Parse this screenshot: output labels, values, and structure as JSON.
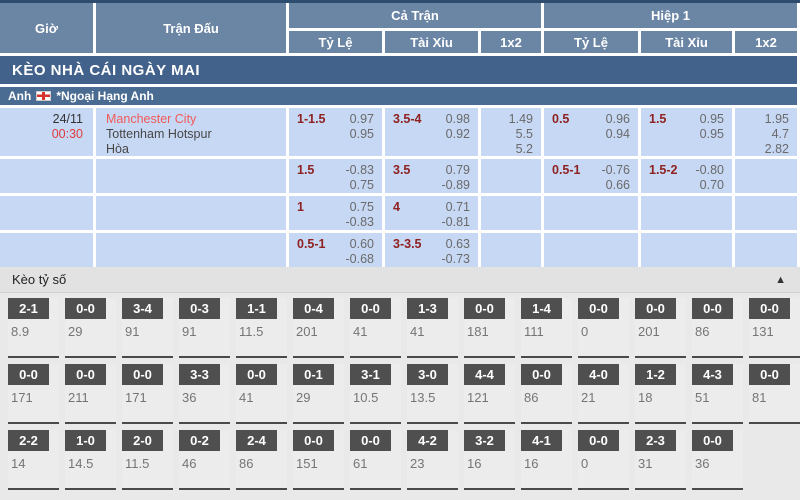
{
  "header": {
    "time_col": "Giờ",
    "match_col": "Trận Đấu",
    "group_full": "Cả Trận",
    "group_half": "Hiệp 1",
    "sub_handicap": "Tỷ Lệ",
    "sub_overunder": "Tài Xỉu",
    "sub_1x2": "1x2"
  },
  "section_title": "KÈO NHÀ CÁI NGÀY MAI",
  "league_bar": {
    "country": "Anh",
    "flag_icon": "england-flag",
    "league": "*Ngoại Hạng Anh"
  },
  "match": {
    "date": "24/11",
    "time": "00:30",
    "home": "Manchester City",
    "away": "Tottenham Hotspur",
    "draw_label": "Hòa"
  },
  "odds_rows": [
    {
      "ft_hdp": {
        "line": "1-1.5",
        "odds": [
          "0.97",
          "0.95"
        ]
      },
      "ft_ou": {
        "line": "3.5-4",
        "odds": [
          "0.98",
          "0.92"
        ]
      },
      "ft_1x2": [
        "1.49",
        "5.5",
        "5.2"
      ],
      "h1_hdp": {
        "line": "0.5",
        "odds": [
          "0.96",
          "0.94"
        ]
      },
      "h1_ou": {
        "line": "1.5",
        "odds": [
          "0.95",
          "0.95"
        ]
      },
      "h1_1x2": [
        "1.95",
        "4.7",
        "2.82"
      ]
    },
    {
      "ft_hdp": {
        "line": "1.5",
        "odds": [
          "-0.83",
          "0.75"
        ]
      },
      "ft_ou": {
        "line": "3.5",
        "odds": [
          "0.79",
          "-0.89"
        ]
      },
      "ft_1x2": [],
      "h1_hdp": {
        "line": "0.5-1",
        "odds": [
          "-0.76",
          "0.66"
        ]
      },
      "h1_ou": {
        "line": "1.5-2",
        "odds": [
          "-0.80",
          "0.70"
        ]
      },
      "h1_1x2": []
    },
    {
      "ft_hdp": {
        "line": "1",
        "odds": [
          "0.75",
          "-0.83"
        ]
      },
      "ft_ou": {
        "line": "4",
        "odds": [
          "0.71",
          "-0.81"
        ]
      },
      "ft_1x2": [],
      "h1_hdp": null,
      "h1_ou": null,
      "h1_1x2": []
    },
    {
      "ft_hdp": {
        "line": "0.5-1",
        "odds": [
          "0.60",
          "-0.68"
        ]
      },
      "ft_ou": {
        "line": "3-3.5",
        "odds": [
          "0.63",
          "-0.73"
        ]
      },
      "ft_1x2": [],
      "h1_hdp": null,
      "h1_ou": null,
      "h1_1x2": []
    }
  ],
  "score_section": {
    "title": "Kèo tỷ số",
    "collapse_icon": "▲",
    "rows": [
      [
        {
          "score": "2-1",
          "odds": "8.9"
        },
        {
          "score": "0-0",
          "odds": "29"
        },
        {
          "score": "3-4",
          "odds": "91"
        },
        {
          "score": "0-3",
          "odds": "91"
        },
        {
          "score": "1-1",
          "odds": "11.5"
        },
        {
          "score": "0-4",
          "odds": "201"
        },
        {
          "score": "0-0",
          "odds": "41"
        },
        {
          "score": "1-3",
          "odds": "41"
        },
        {
          "score": "0-0",
          "odds": "181"
        },
        {
          "score": "1-4",
          "odds": "111"
        },
        {
          "score": "0-0",
          "odds": "0"
        },
        {
          "score": "0-0",
          "odds": "201"
        },
        {
          "score": "0-0",
          "odds": "86"
        },
        {
          "score": "0-0",
          "odds": "131"
        }
      ],
      [
        {
          "score": "0-0",
          "odds": "171"
        },
        {
          "score": "0-0",
          "odds": "211"
        },
        {
          "score": "0-0",
          "odds": "171"
        },
        {
          "score": "3-3",
          "odds": "36"
        },
        {
          "score": "0-0",
          "odds": "41"
        },
        {
          "score": "0-1",
          "odds": "29"
        },
        {
          "score": "3-1",
          "odds": "10.5"
        },
        {
          "score": "3-0",
          "odds": "13.5"
        },
        {
          "score": "4-4",
          "odds": "121"
        },
        {
          "score": "0-0",
          "odds": "86"
        },
        {
          "score": "4-0",
          "odds": "21"
        },
        {
          "score": "1-2",
          "odds": "18"
        },
        {
          "score": "4-3",
          "odds": "51"
        },
        {
          "score": "0-0",
          "odds": "81"
        }
      ],
      [
        {
          "score": "2-2",
          "odds": "14"
        },
        {
          "score": "1-0",
          "odds": "14.5"
        },
        {
          "score": "2-0",
          "odds": "11.5"
        },
        {
          "score": "0-2",
          "odds": "46"
        },
        {
          "score": "2-4",
          "odds": "86"
        },
        {
          "score": "0-0",
          "odds": "151"
        },
        {
          "score": "0-0",
          "odds": "61"
        },
        {
          "score": "4-2",
          "odds": "23"
        },
        {
          "score": "3-2",
          "odds": "16"
        },
        {
          "score": "4-1",
          "odds": "16"
        },
        {
          "score": "0-0",
          "odds": "0"
        },
        {
          "score": "2-3",
          "odds": "31"
        },
        {
          "score": "0-0",
          "odds": "36"
        }
      ]
    ]
  },
  "colors": {
    "header_blue": "#6b85a4",
    "section_bar_blue": "#42628b",
    "league_bar_blue": "#4a6b92",
    "cell_light_blue": "#c7d8f4",
    "handicap_maroon": "#8f2121",
    "time_red": "#e03c3c",
    "home_team_red": "#f05a5a",
    "score_head_gray": "#4f4f4f"
  }
}
